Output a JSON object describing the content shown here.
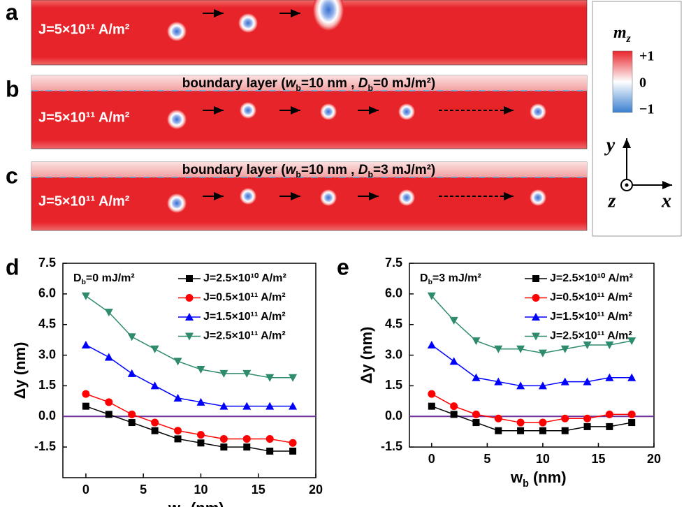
{
  "panels": [
    {
      "letter": "a",
      "current": "J=5×10¹¹ A/m²"
    },
    {
      "letter": "b",
      "current": "J=5×10¹¹ A/m²",
      "boundary": [
        {
          "t": "boundary layer ("
        },
        {
          "t": "w",
          "italic": true
        },
        {
          "t": "b",
          "sub": true
        },
        {
          "t": "=10 nm , "
        },
        {
          "t": "D",
          "italic": true
        },
        {
          "t": "b",
          "sub": true
        },
        {
          "t": "=0 mJ/m²)"
        }
      ]
    },
    {
      "letter": "c",
      "current": "J=5×10¹¹ A/m²",
      "boundary": [
        {
          "t": "boundary layer ("
        },
        {
          "t": "w",
          "italic": true
        },
        {
          "t": "b",
          "sub": true
        },
        {
          "t": "=10 nm , "
        },
        {
          "t": "D",
          "italic": true
        },
        {
          "t": "b",
          "sub": true
        },
        {
          "t": "=3 mJ/m²)"
        }
      ]
    }
  ],
  "colorbar": {
    "title": [
      {
        "t": "m",
        "italic": true
      },
      {
        "t": "z",
        "sub": true,
        "italic": true
      }
    ],
    "labels": [
      "+1",
      "0",
      "−1"
    ]
  },
  "axes_glyph": {
    "y": "y",
    "z": "z",
    "x": "x"
  },
  "chart_data": [
    {
      "type": "line",
      "letter": "d",
      "annotation": [
        {
          "t": "D"
        },
        {
          "t": "b",
          "sub": true
        },
        {
          "t": "=0 mJ/m²"
        }
      ],
      "xlabel": [
        {
          "t": "w"
        },
        {
          "t": "b",
          "sub": true
        },
        {
          "t": " (nm)"
        }
      ],
      "ylabel": "Δy (nm)",
      "x": [
        0,
        2,
        4,
        6,
        8,
        10,
        12,
        14,
        16,
        18
      ],
      "xlim": [
        -2,
        20
      ],
      "xticks": [
        0,
        5,
        10,
        15,
        20
      ],
      "ylim": [
        -3,
        7.5
      ],
      "yticks": [
        -1.5,
        {
          "value": 0,
          "label": "0.0"
        },
        1.5,
        {
          "value": 3,
          "label": "3.0"
        },
        4.5,
        {
          "value": 6,
          "label": "6.0"
        },
        7.5
      ],
      "reference_line": {
        "value": 0,
        "color": "#7030a0"
      },
      "series": [
        {
          "name": "J=2.5×10¹⁰ A/m²",
          "color": "#000000",
          "marker": "square",
          "values": [
            0.5,
            0.1,
            -0.3,
            -0.7,
            -1.1,
            -1.3,
            -1.5,
            -1.5,
            -1.7,
            -1.7
          ]
        },
        {
          "name": "J=0.5×10¹¹ A/m²",
          "color": "#ff0000",
          "marker": "circle",
          "values": [
            1.1,
            0.7,
            0.1,
            -0.3,
            -0.7,
            -0.9,
            -1.1,
            -1.1,
            -1.1,
            -1.3
          ]
        },
        {
          "name": "J=1.5×10¹¹ A/m²",
          "color": "#0000ff",
          "marker": "triangle-up",
          "values": [
            3.5,
            2.9,
            2.1,
            1.5,
            0.9,
            0.7,
            0.5,
            0.5,
            0.5,
            0.5
          ]
        },
        {
          "name": "J=2.5×10¹¹ A/m²",
          "color": "#2e8b6e",
          "marker": "triangle-down",
          "values": [
            5.9,
            5.1,
            3.9,
            3.3,
            2.7,
            2.3,
            2.1,
            2.1,
            1.9,
            1.9
          ]
        }
      ]
    },
    {
      "type": "line",
      "letter": "e",
      "annotation": [
        {
          "t": "D"
        },
        {
          "t": "b",
          "sub": true
        },
        {
          "t": "=3 mJ/m²"
        }
      ],
      "xlabel": [
        {
          "t": "w"
        },
        {
          "t": "b",
          "sub": true
        },
        {
          "t": " (nm)"
        }
      ],
      "ylabel": "Δy (nm)",
      "x": [
        0,
        2,
        4,
        6,
        8,
        10,
        12,
        14,
        16,
        18
      ],
      "xlim": [
        -2,
        20
      ],
      "xticks": [
        0,
        5,
        10,
        15,
        20
      ],
      "ylim": [
        -1.5,
        7.5
      ],
      "yticks": [
        -1.5,
        {
          "value": 0,
          "label": "0.0"
        },
        1.5,
        {
          "value": 3,
          "label": "3.0"
        },
        4.5,
        {
          "value": 6,
          "label": "6.0"
        },
        7.5
      ],
      "reference_line": {
        "value": 0,
        "color": "#7030a0"
      },
      "series": [
        {
          "name": "J=2.5×10¹⁰ A/m²",
          "color": "#000000",
          "marker": "square",
          "values": [
            0.5,
            0.1,
            -0.3,
            -0.7,
            -0.7,
            -0.7,
            -0.7,
            -0.5,
            -0.5,
            -0.3
          ]
        },
        {
          "name": "J=0.5×10¹¹ A/m²",
          "color": "#ff0000",
          "marker": "circle",
          "values": [
            1.1,
            0.5,
            0.1,
            -0.1,
            -0.3,
            -0.3,
            -0.1,
            -0.1,
            0.1,
            0.1
          ]
        },
        {
          "name": "J=1.5×10¹¹ A/m²",
          "color": "#0000ff",
          "marker": "triangle-up",
          "values": [
            3.5,
            2.7,
            1.9,
            1.7,
            1.5,
            1.5,
            1.7,
            1.7,
            1.9,
            1.9
          ]
        },
        {
          "name": "J=2.5×10¹¹ A/m²",
          "color": "#2e8b6e",
          "marker": "triangle-down",
          "values": [
            5.9,
            4.7,
            3.7,
            3.3,
            3.3,
            3.1,
            3.3,
            3.5,
            3.5,
            3.7
          ]
        }
      ]
    }
  ]
}
